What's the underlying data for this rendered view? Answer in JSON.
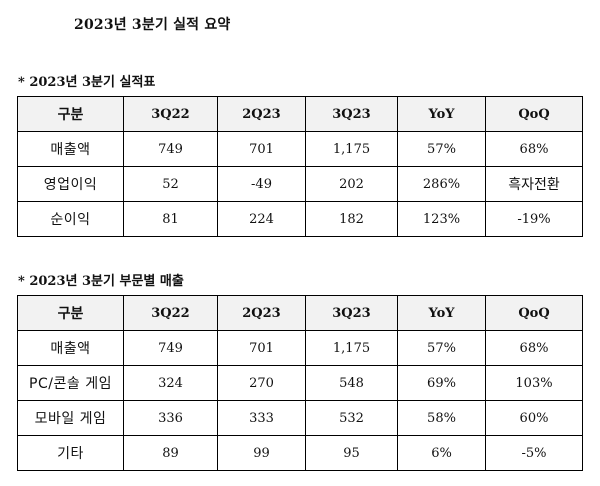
{
  "document": {
    "title": "2023년 3분기 실적 요약"
  },
  "summary_table": {
    "section_title": "* 2023년 3분기 실적표",
    "headers": [
      "구분",
      "3Q22",
      "2Q23",
      "3Q23",
      "YoY",
      "QoQ"
    ],
    "rows": [
      [
        "매출액",
        "749",
        "701",
        "1,175",
        "57%",
        "68%"
      ],
      [
        "영업이익",
        "52",
        "-49",
        "202",
        "286%",
        "흑자전환"
      ],
      [
        "순이익",
        "81",
        "224",
        "182",
        "123%",
        "-19%"
      ]
    ]
  },
  "segment_table": {
    "section_title": "* 2023년 3분기 부문별 매출",
    "headers": [
      "구분",
      "3Q22",
      "2Q23",
      "3Q23",
      "YoY",
      "QoQ"
    ],
    "rows": [
      [
        "매출액",
        "749",
        "701",
        "1,175",
        "57%",
        "68%"
      ],
      [
        "PC/콘솔 게임",
        "324",
        "270",
        "548",
        "69%",
        "103%"
      ],
      [
        "모바일 게임",
        "336",
        "333",
        "532",
        "58%",
        "60%"
      ],
      [
        "기타",
        "89",
        "99",
        "95",
        "6%",
        "-5%"
      ]
    ]
  },
  "colors": {
    "header_background": "#f2f2f2",
    "border": "#000000",
    "text": "#111111"
  }
}
